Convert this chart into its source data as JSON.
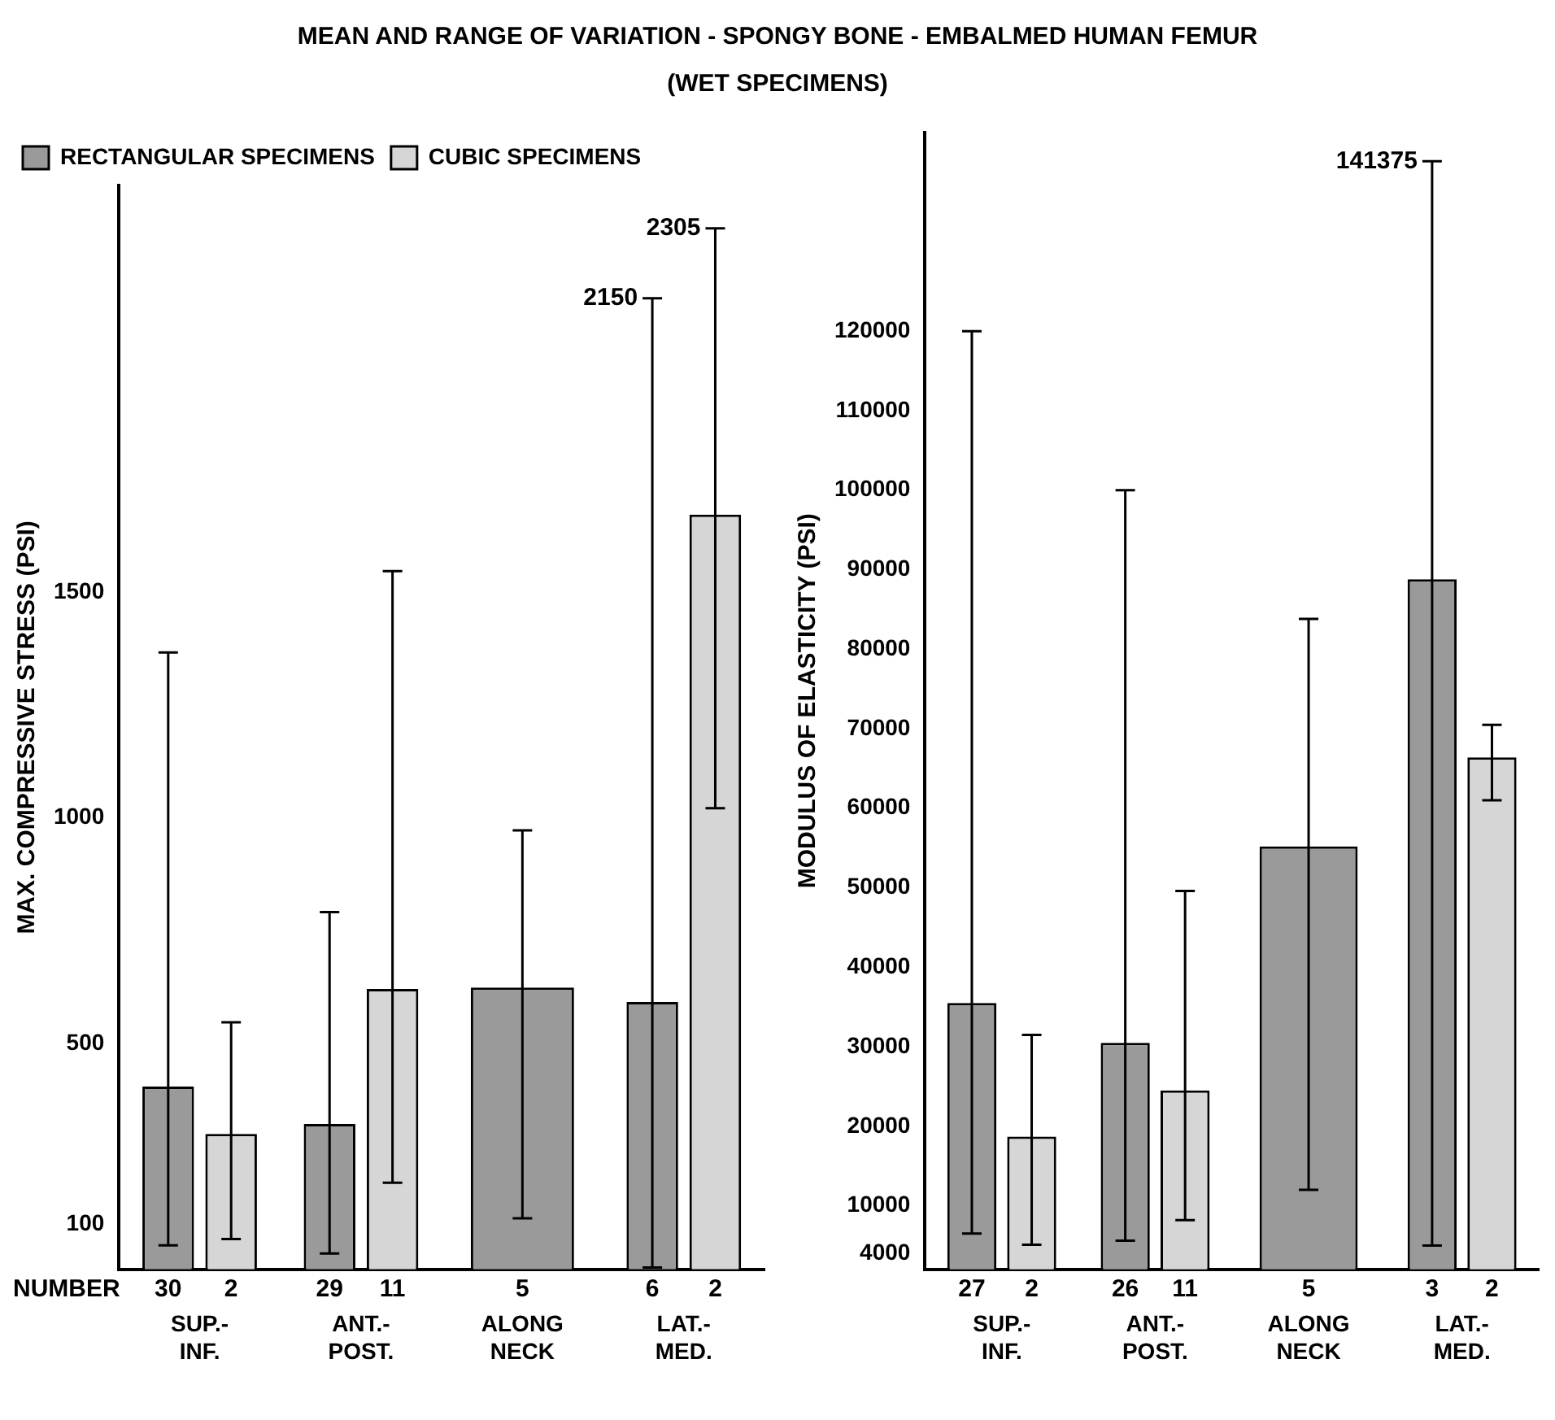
{
  "chart_data": [
    {
      "type": "bar",
      "title": "MEAN AND RANGE OF VARIATION - SPONGY BONE - EMBALMED HUMAN FEMUR",
      "subtitle": "(WET SPECIMENS)",
      "ylabel": "MAX. COMPRESSIVE STRESS (PSI)",
      "categories": [
        "SUP.- INF.",
        "ANT.- POST.",
        "ALONG NECK",
        "LAT.- MED."
      ],
      "series": [
        {
          "name": "RECTANGULAR SPECIMENS",
          "color": "#9a9a9a",
          "values": [
            405,
            322,
            624,
            592
          ],
          "errors": [
            [
              53,
              1366
            ],
            [
              35,
              791
            ],
            [
              113,
              972
            ],
            [
              4,
              2150
            ]
          ]
        },
        {
          "name": "CUBIC SPECIMENS",
          "color": "#d6d6d6",
          "values": [
            300,
            621,
            null,
            1671
          ],
          "errors": [
            [
              67,
              547
            ],
            [
              192,
              1546
            ],
            null,
            [
              1021,
              2305
            ]
          ]
        }
      ],
      "ylim": [
        0,
        2400
      ],
      "yticks": [
        100,
        500,
        1000,
        1500
      ],
      "grid": false,
      "legend": "top left",
      "annotations": [
        "NUMBER",
        "30",
        "2",
        "29",
        "11",
        "5",
        "6",
        "2",
        "2150",
        "2305"
      ]
    },
    {
      "type": "bar",
      "ylabel": "MODULUS OF ELASTICITY (PSI)",
      "categories": [
        "SUP.- INF.",
        "ANT.- POST.",
        "ALONG NECK",
        "LAT.- MED."
      ],
      "series": [
        {
          "color": "#9a9a9a",
          "values": [
            35500,
            30500,
            55200,
            88800
          ],
          "errors": [
            [
              6500,
              120000
            ],
            [
              5600,
              100000
            ],
            [
              12000,
              83800
            ],
            [
              5000,
              141375
            ]
          ]
        },
        {
          "color": "#d6d6d6",
          "values": [
            18700,
            24500,
            null,
            66400
          ],
          "errors": [
            [
              5100,
              31500
            ],
            [
              8200,
              49600
            ],
            null,
            [
              61000,
              70500
            ]
          ]
        }
      ],
      "ylim": [
        2000,
        145000
      ],
      "yticks": [
        4000,
        10000,
        20000,
        30000,
        40000,
        50000,
        60000,
        70000,
        80000,
        90000,
        100000,
        110000,
        120000
      ],
      "grid": false,
      "legend": false,
      "annotations": [
        "27",
        "2",
        "26",
        "11",
        "5",
        "3",
        "2",
        "141375"
      ]
    }
  ]
}
